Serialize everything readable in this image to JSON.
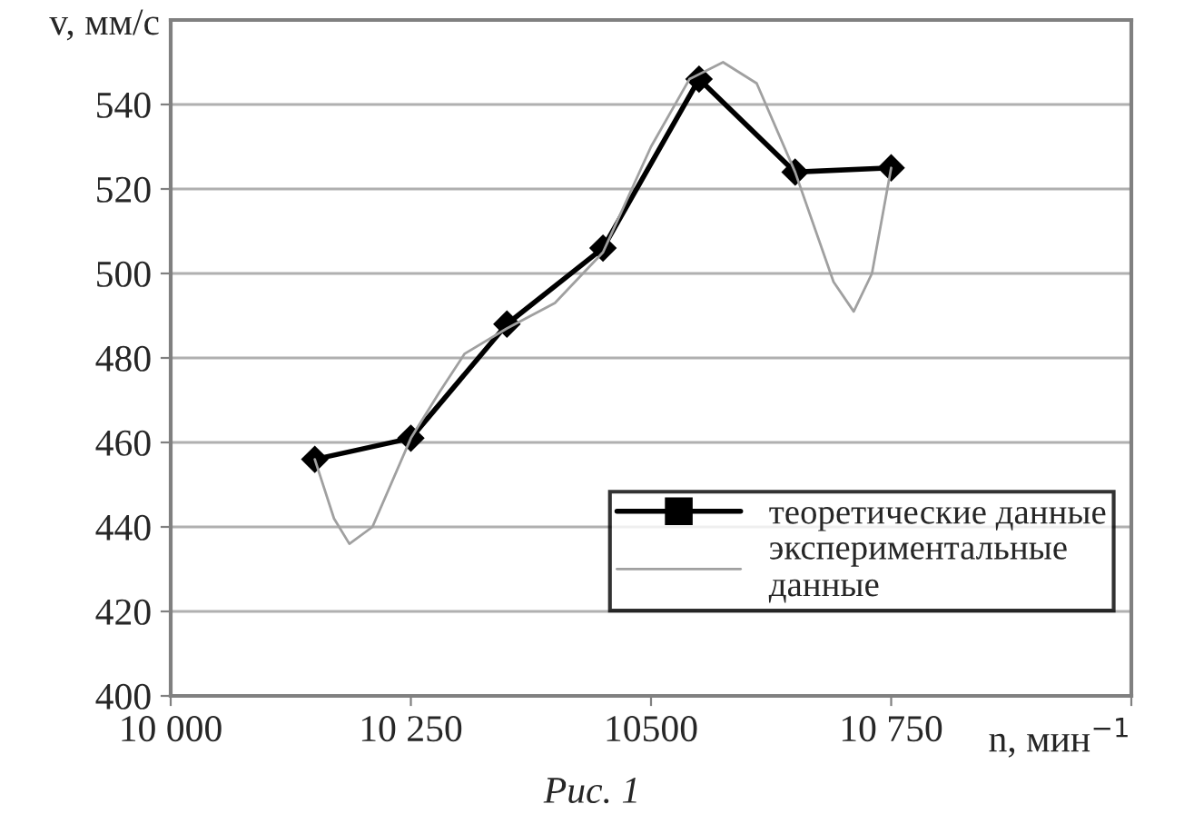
{
  "chart_data": {
    "type": "line",
    "xlabel": "n, мин$^{−1}$",
    "ylabel": "v, мм/с",
    "annotations": [
      "Рис. 1"
    ],
    "xlim": [
      10000,
      11000
    ],
    "xticks": [
      {
        "value": 10000,
        "label": "10 000"
      },
      {
        "value": 10250,
        "label": "10 250"
      },
      10500,
      {
        "value": 10750,
        "label": "10 750"
      },
      {
        "value": 11000,
        "label": null
      }
    ],
    "ylim": [
      400,
      560
    ],
    "yticks": [
      400,
      420,
      440,
      460,
      480,
      500,
      520,
      540
    ],
    "grid": "y",
    "legend": "bottom right",
    "line_style": "solid",
    "series": [
      {
        "name": "теоретические данные",
        "color": "#000000",
        "marker": "diamond",
        "x": [
          10150,
          10250,
          10350,
          10450,
          10550,
          10650,
          10750
        ],
        "values": [
          456,
          461,
          488,
          506,
          546,
          524,
          525
        ]
      },
      {
        "name": "экспериментальные\nданные",
        "color": "#a0a0a0",
        "marker": "none",
        "x": [
          10150,
          10170,
          10186,
          10210,
          10250,
          10280,
          10306,
          10350,
          10400,
          10450,
          10500,
          10540,
          10575,
          10610,
          10650,
          10690,
          10711,
          10730,
          10750
        ],
        "values": [
          456,
          442,
          436,
          440,
          461,
          472,
          481,
          487,
          493,
          505,
          530,
          546,
          550,
          545,
          524,
          498,
          491,
          500,
          525
        ]
      }
    ]
  }
}
